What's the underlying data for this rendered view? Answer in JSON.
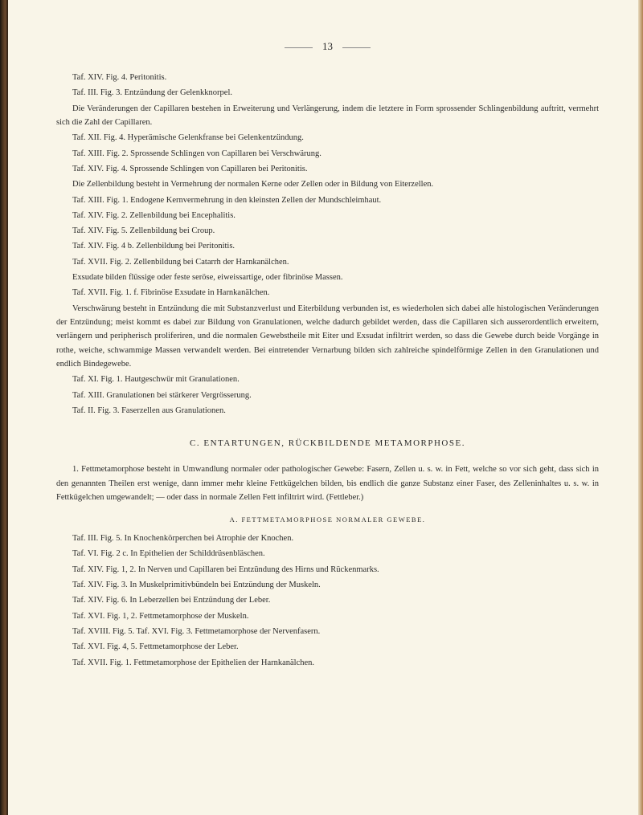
{
  "page_number": "13",
  "paragraphs": [
    "Taf. XIV. Fig. 4. Peritonitis.",
    "Taf. III. Fig. 3. Entzündung der Gelenkknorpel.",
    "Die Veränderungen der Capillaren bestehen in Erweiterung und Verlängerung, indem die letztere in Form sprossender Schlingenbildung auftritt, vermehrt sich die Zahl der Capillaren.",
    "Taf. XII. Fig. 4. Hyperämische Gelenkfranse bei Gelenkentzündung.",
    "Taf. XIII. Fig. 2. Sprossende Schlingen von Capillaren bei Verschwärung.",
    "Taf. XIV. Fig. 4. Sprossende Schlingen von Capillaren bei Peritonitis.",
    "Die Zellenbildung besteht in Vermehrung der normalen Kerne oder Zellen oder in Bildung von Eiterzellen.",
    "Taf. XIII. Fig. 1. Endogene Kernvermehrung in den kleinsten Zellen der Mundschleimhaut.",
    "Taf. XIV. Fig. 2. Zellenbildung bei Encephalitis.",
    "Taf. XIV. Fig. 5. Zellenbildung bei Croup.",
    "Taf. XIV. Fig. 4 b. Zellenbildung bei Peritonitis.",
    "Taf. XVII. Fig. 2. Zellenbildung bei Catarrh der Harnkanälchen.",
    "Exsudate bilden flüssige oder feste seröse, eiweissartige, oder fibrinöse Massen.",
    "Taf. XVII. Fig. 1. f. Fibrinöse Exsudate in Harnkanälchen.",
    "Verschwärung besteht in Entzündung die mit Substanzverlust und Eiterbildung verbunden ist, es wiederholen sich dabei alle histologischen Veränderungen der Entzündung; meist kommt es dabei zur Bildung von Granulationen, welche dadurch gebildet werden, dass die Capillaren sich ausserordentlich erweitern, verlängern und peripherisch proliferiren, und die normalen Gewebstheile mit Eiter und Exsudat infiltrirt werden, so dass die Gewebe durch beide Vorgänge in rothe, weiche, schwammige Massen verwandelt werden. Bei eintretender Vernarbung bilden sich zahlreiche spindelförmige Zellen in den Granulationen und endlich Bindegewebe.",
    "Taf. XI. Fig. 1. Hautgeschwür mit Granulationen.",
    "Taf. XIII. Granulationen bei stärkerer Vergrösserung.",
    "Taf. II. Fig. 3. Faserzellen aus Granulationen."
  ],
  "section_c_heading": "C.  ENTARTUNGEN, RÜCKBILDENDE METAMORPHOSE.",
  "section_c_para": "1. Fettmetamorphose besteht in Umwandlung normaler oder pathologischer Gewebe: Fasern, Zellen u. s. w. in Fett, welche so vor sich geht, dass sich in den genannten Theilen erst wenige, dann immer mehr kleine Fettkügelchen bilden, bis endlich die ganze Substanz einer Faser, des Zelleninhaltes u. s. w. in Fettkügelchen umgewandelt; — oder dass in normale Zellen Fett infiltrirt wird. (Fettleber.)",
  "sub_heading_a": "A.  FETTMETAMORPHOSE  NORMALER  GEWEBE.",
  "list_a": [
    "Taf. III. Fig. 5. In Knochenkörperchen bei Atrophie der Knochen.",
    "Taf. VI. Fig. 2 c. In Epithelien der Schilddrüsenbläschen.",
    "Taf. XIV. Fig. 1, 2. In Nerven und Capillaren bei Entzündung des Hirns und Rückenmarks.",
    "Taf. XIV. Fig. 3. In Muskelprimitivbündeln bei Entzündung der Muskeln.",
    "Taf. XIV. Fig. 6. In Leberzellen bei Entzündung der Leber.",
    "Taf. XVI. Fig. 1, 2. Fettmetamorphose der Muskeln.",
    "Taf. XVIII. Fig. 5. Taf. XVI. Fig. 3. Fettmetamorphose der Nervenfasern.",
    "Taf. XVI. Fig. 4, 5. Fettmetamorphose der Leber.",
    "Taf. XVII. Fig. 1. Fettmetamorphose der Epithelien der Harnkanälchen."
  ]
}
